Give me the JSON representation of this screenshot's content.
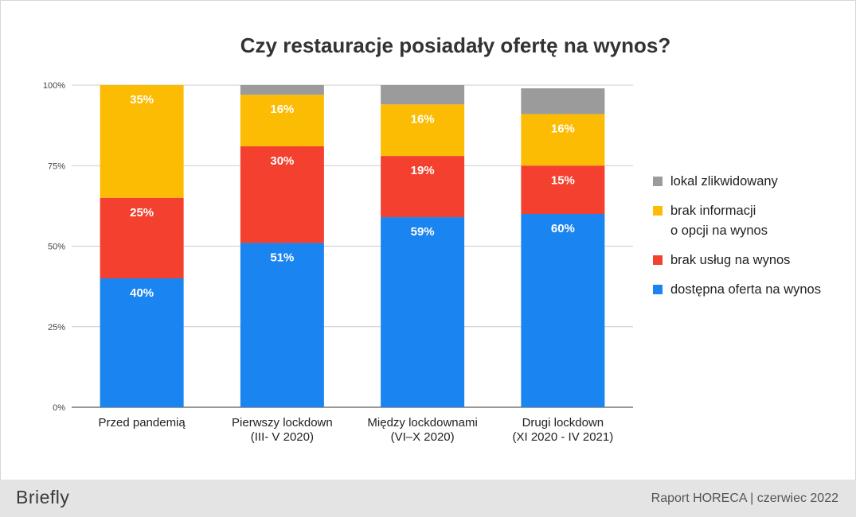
{
  "chart_data": {
    "type": "bar",
    "stacked": true,
    "title": "Czy restauracje posiadały ofertę na wynos?",
    "categories": [
      [
        "Przed pandemią"
      ],
      [
        "Pierwszy lockdown",
        "(III- V 2020)"
      ],
      [
        "Między lockdownami",
        "(VI–X 2020)"
      ],
      [
        "Drugi lockdown",
        "(XI 2020 - IV 2021)"
      ]
    ],
    "series": [
      {
        "name": "dostępna oferta na wynos",
        "color": "#1a84f0",
        "values": [
          40,
          51,
          59,
          60
        ],
        "labels": [
          "40%",
          "51%",
          "59%",
          "60%"
        ]
      },
      {
        "name": "brak usług na wynos",
        "color": "#f4402f",
        "values": [
          25,
          30,
          19,
          15
        ],
        "labels": [
          "25%",
          "30%",
          "19%",
          "15%"
        ]
      },
      {
        "name": "brak informacji\no opcji na wynos",
        "color": "#fcbc03",
        "values": [
          35,
          16,
          16,
          16
        ],
        "labels": [
          "35%",
          "16%",
          "16%",
          "16%"
        ]
      },
      {
        "name": "lokal zlikwidowany",
        "color": "#9b9b9b",
        "values": [
          0,
          3,
          6,
          8
        ],
        "labels": [
          "",
          "",
          "",
          ""
        ]
      }
    ],
    "yticks": [
      "0%",
      "25%",
      "50%",
      "75%",
      "100%"
    ],
    "ylim": [
      0,
      100
    ],
    "grid": true,
    "legend_position": "right"
  },
  "footer": {
    "brand": "Briefly",
    "report": "Raport HORECA | czerwiec 2022"
  }
}
